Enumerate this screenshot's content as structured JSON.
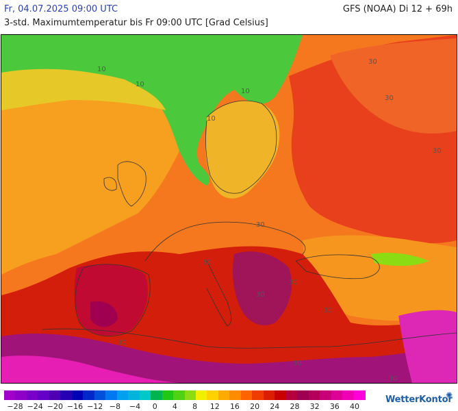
{
  "header": {
    "date": "Fr, 04.07.2025 09:00 UTC",
    "model": "GFS (NOAA) Di 12 + 69h",
    "subtitle": "3-std. Maximumtemperatur bis Fr 09:00 UTC [Grad Celsius]"
  },
  "map": {
    "region": "Europe",
    "contour_labels": [
      "10",
      "10",
      "10",
      "10",
      "30",
      "30",
      "30",
      "30",
      "30",
      "30",
      "30",
      "30",
      "30",
      "30",
      "30"
    ]
  },
  "legend": {
    "ticks": [
      "−28",
      "−24",
      "−20",
      "−16",
      "−12",
      "−8",
      "−4",
      "0",
      "4",
      "8",
      "12",
      "16",
      "20",
      "24",
      "28",
      "32",
      "36",
      "40"
    ],
    "colors": [
      "#a000c8",
      "#8c00c8",
      "#7800c8",
      "#6400c8",
      "#5000b4",
      "#2800b4",
      "#0000b4",
      "#0028c8",
      "#0050dc",
      "#0078f0",
      "#00a0f0",
      "#00b4dc",
      "#00c8c8",
      "#00b450",
      "#1ec814",
      "#50d214",
      "#8cdc14",
      "#f0f000",
      "#ffd200",
      "#ffaa00",
      "#ff8c00",
      "#ff6400",
      "#f03c00",
      "#dc1e00",
      "#c80000",
      "#b4003c",
      "#a00050",
      "#b4005a",
      "#c80078",
      "#dc0096",
      "#f000b4",
      "#ff00dc"
    ],
    "logo": "WetterKontor"
  }
}
